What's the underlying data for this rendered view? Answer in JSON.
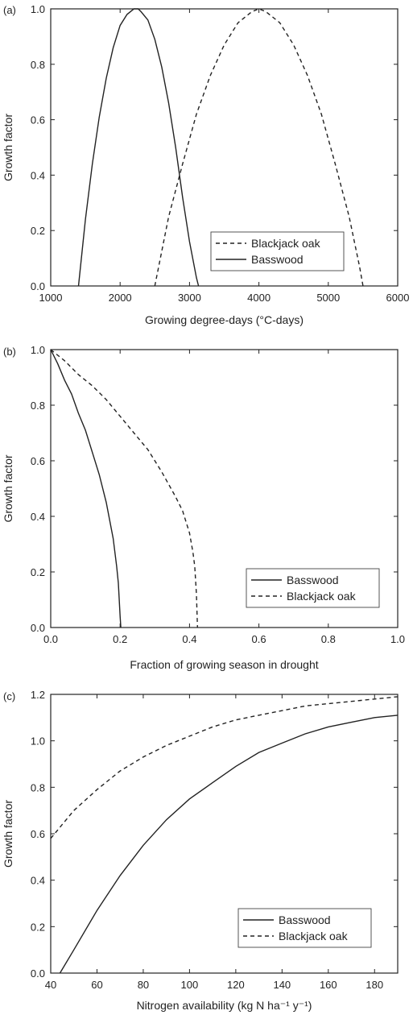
{
  "chart_data": [
    {
      "type": "line",
      "panel_label": "(a)",
      "xlabel": "Growing degree-days (°C-days)",
      "ylabel": "Growth factor",
      "xlim": [
        1000,
        6000
      ],
      "ylim": [
        0,
        1.0
      ],
      "xticks": [
        1000,
        2000,
        3000,
        4000,
        5000,
        6000
      ],
      "xtick_labels": [
        "1000",
        "2000",
        "3000",
        "4000",
        "5000",
        "6000"
      ],
      "yticks": [
        0,
        0.2,
        0.4,
        0.6,
        0.8,
        1.0
      ],
      "ytick_labels": [
        "0.0",
        "0.2",
        "0.4",
        "0.6",
        "0.8",
        "1.0"
      ],
      "legend_position": "bottom-right",
      "series": [
        {
          "name": "Blackjack oak",
          "style": "dashed",
          "x": [
            2500,
            2700,
            2900,
            3100,
            3300,
            3500,
            3700,
            3900,
            4000,
            4100,
            4300,
            4500,
            4700,
            4900,
            5100,
            5300,
            5450,
            5500
          ],
          "y": [
            0.0,
            0.25,
            0.44,
            0.62,
            0.76,
            0.87,
            0.95,
            0.99,
            1.0,
            0.99,
            0.95,
            0.87,
            0.76,
            0.62,
            0.44,
            0.25,
            0.07,
            0.0
          ]
        },
        {
          "name": "Basswood",
          "style": "solid",
          "x": [
            1400,
            1500,
            1600,
            1700,
            1800,
            1900,
            2000,
            2100,
            2200,
            2260,
            2300,
            2400,
            2500,
            2600,
            2700,
            2800,
            2900,
            3000,
            3100,
            3130
          ],
          "y": [
            0.0,
            0.24,
            0.44,
            0.61,
            0.75,
            0.86,
            0.94,
            0.98,
            1.0,
            1.0,
            0.99,
            0.96,
            0.89,
            0.79,
            0.66,
            0.5,
            0.32,
            0.16,
            0.03,
            0.0
          ]
        }
      ]
    },
    {
      "type": "line",
      "panel_label": "(b)",
      "xlabel": "Fraction of growing season in drought",
      "ylabel": "Growth factor",
      "xlim": [
        0,
        1.0
      ],
      "ylim": [
        0,
        1.0
      ],
      "xticks": [
        0,
        0.2,
        0.4,
        0.6,
        0.8,
        1.0
      ],
      "xtick_labels": [
        "0.0",
        "0.2",
        "0.4",
        "0.6",
        "0.8",
        "1.0"
      ],
      "yticks": [
        0,
        0.2,
        0.4,
        0.6,
        0.8,
        1.0
      ],
      "ytick_labels": [
        "0.0",
        "0.2",
        "0.4",
        "0.6",
        "0.8",
        "1.0"
      ],
      "legend_position": "bottom-right",
      "series": [
        {
          "name": "Basswood",
          "style": "solid",
          "x": [
            0.0,
            0.02,
            0.04,
            0.06,
            0.08,
            0.1,
            0.12,
            0.14,
            0.16,
            0.18,
            0.19,
            0.195,
            0.2,
            0.202
          ],
          "y": [
            1.0,
            0.95,
            0.89,
            0.84,
            0.77,
            0.71,
            0.63,
            0.55,
            0.45,
            0.32,
            0.22,
            0.16,
            0.04,
            0.0
          ]
        },
        {
          "name": "Blackjack oak",
          "style": "dashed",
          "x": [
            0.0,
            0.04,
            0.08,
            0.12,
            0.16,
            0.2,
            0.24,
            0.28,
            0.32,
            0.36,
            0.38,
            0.4,
            0.41,
            0.415,
            0.42,
            0.423
          ],
          "y": [
            1.0,
            0.96,
            0.91,
            0.87,
            0.82,
            0.76,
            0.7,
            0.64,
            0.56,
            0.47,
            0.42,
            0.34,
            0.27,
            0.22,
            0.12,
            0.0
          ]
        }
      ]
    },
    {
      "type": "line",
      "panel_label": "(c)",
      "xlabel": "Nitrogen availability (kg N ha⁻¹ y⁻¹)",
      "ylabel": "Growth factor",
      "xlim": [
        40,
        190
      ],
      "ylim": [
        0,
        1.2
      ],
      "xticks": [
        40,
        60,
        80,
        100,
        120,
        140,
        160,
        180
      ],
      "xtick_labels": [
        "40",
        "60",
        "80",
        "100",
        "120",
        "140",
        "160",
        "180"
      ],
      "yticks": [
        0,
        0.2,
        0.4,
        0.6,
        0.8,
        1.0,
        1.2
      ],
      "ytick_labels": [
        "0.0",
        "0.2",
        "0.4",
        "0.6",
        "0.8",
        "1.0",
        "1.2"
      ],
      "legend_position": "bottom-right",
      "series": [
        {
          "name": "Basswood",
          "style": "solid",
          "x": [
            44,
            50,
            60,
            70,
            80,
            90,
            100,
            110,
            120,
            130,
            140,
            150,
            160,
            170,
            180,
            190
          ],
          "y": [
            0.0,
            0.1,
            0.27,
            0.42,
            0.55,
            0.66,
            0.75,
            0.82,
            0.89,
            0.95,
            0.99,
            1.03,
            1.06,
            1.08,
            1.1,
            1.11
          ]
        },
        {
          "name": "Blackjack oak",
          "style": "dashed",
          "x": [
            40,
            50,
            60,
            70,
            80,
            90,
            100,
            110,
            120,
            130,
            140,
            150,
            160,
            170,
            180,
            190
          ],
          "y": [
            0.58,
            0.7,
            0.79,
            0.87,
            0.93,
            0.98,
            1.02,
            1.06,
            1.09,
            1.11,
            1.13,
            1.15,
            1.16,
            1.17,
            1.18,
            1.19
          ]
        }
      ]
    }
  ]
}
